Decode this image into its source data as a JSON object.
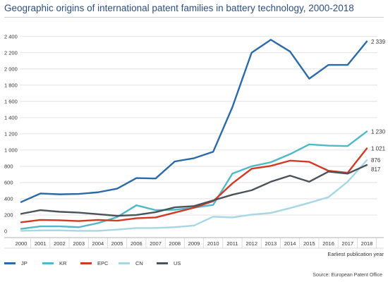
{
  "title": "Geographic origins of international patent families in battery technology, 2000-2018",
  "source": "Source: European Patent Office",
  "chart_data": {
    "type": "line",
    "title": "Geographic origins of international patent families in battery technology, 2000-2018",
    "xlabel": "Earliest publication year",
    "ylabel": "",
    "x": [
      2000,
      2001,
      2002,
      2003,
      2004,
      2005,
      2006,
      2007,
      2008,
      2009,
      2010,
      2011,
      2012,
      2013,
      2014,
      2015,
      2016,
      2017,
      2018
    ],
    "x_tick_labels": [
      "2000",
      "2001",
      "2002",
      "2003",
      "2004",
      "2005",
      "2006",
      "2007",
      "2008",
      "2009",
      "2010",
      "2011",
      "2012",
      "2013",
      "2014",
      "2015",
      "2016",
      "2017",
      "2018"
    ],
    "ylim": [
      0,
      2450
    ],
    "y_ticks": [
      0,
      200,
      400,
      600,
      800,
      1000,
      1200,
      1400,
      1600,
      1800,
      2000,
      2200,
      2400
    ],
    "y_tick_labels": [
      "0",
      "200",
      "400",
      "600",
      "800",
      "1 000",
      "1 200",
      "1 400",
      "1 600",
      "1 800",
      "2 000",
      "2 200",
      "2 400"
    ],
    "grid": "horizontal",
    "legend_position": "bottom-left",
    "series": [
      {
        "name": "JP",
        "color": "#2b6aa8",
        "values": [
          360,
          465,
          455,
          460,
          480,
          525,
          655,
          650,
          860,
          900,
          980,
          1530,
          2200,
          2360,
          2215,
          1880,
          2050,
          2050,
          2339
        ],
        "end_label": "2 339"
      },
      {
        "name": "KR",
        "color": "#4fb9c9",
        "values": [
          30,
          60,
          60,
          50,
          100,
          175,
          320,
          260,
          265,
          290,
          325,
          710,
          800,
          850,
          950,
          1070,
          1055,
          1050,
          1230
        ],
        "end_label": "1 230"
      },
      {
        "name": "EPC",
        "color": "#d13a25",
        "values": [
          110,
          140,
          135,
          125,
          140,
          130,
          160,
          170,
          230,
          290,
          370,
          590,
          770,
          805,
          870,
          855,
          745,
          720,
          1021
        ],
        "end_label": "1 021"
      },
      {
        "name": "CN",
        "color": "#a6d7e3",
        "values": [
          5,
          10,
          10,
          5,
          5,
          20,
          40,
          40,
          50,
          70,
          180,
          170,
          205,
          225,
          285,
          350,
          420,
          610,
          876
        ],
        "end_label": "876"
      },
      {
        "name": "US",
        "color": "#4b535a",
        "values": [
          215,
          260,
          240,
          230,
          210,
          190,
          200,
          235,
          295,
          310,
          380,
          450,
          505,
          610,
          685,
          610,
          735,
          710,
          817
        ],
        "end_label": "817"
      }
    ]
  }
}
